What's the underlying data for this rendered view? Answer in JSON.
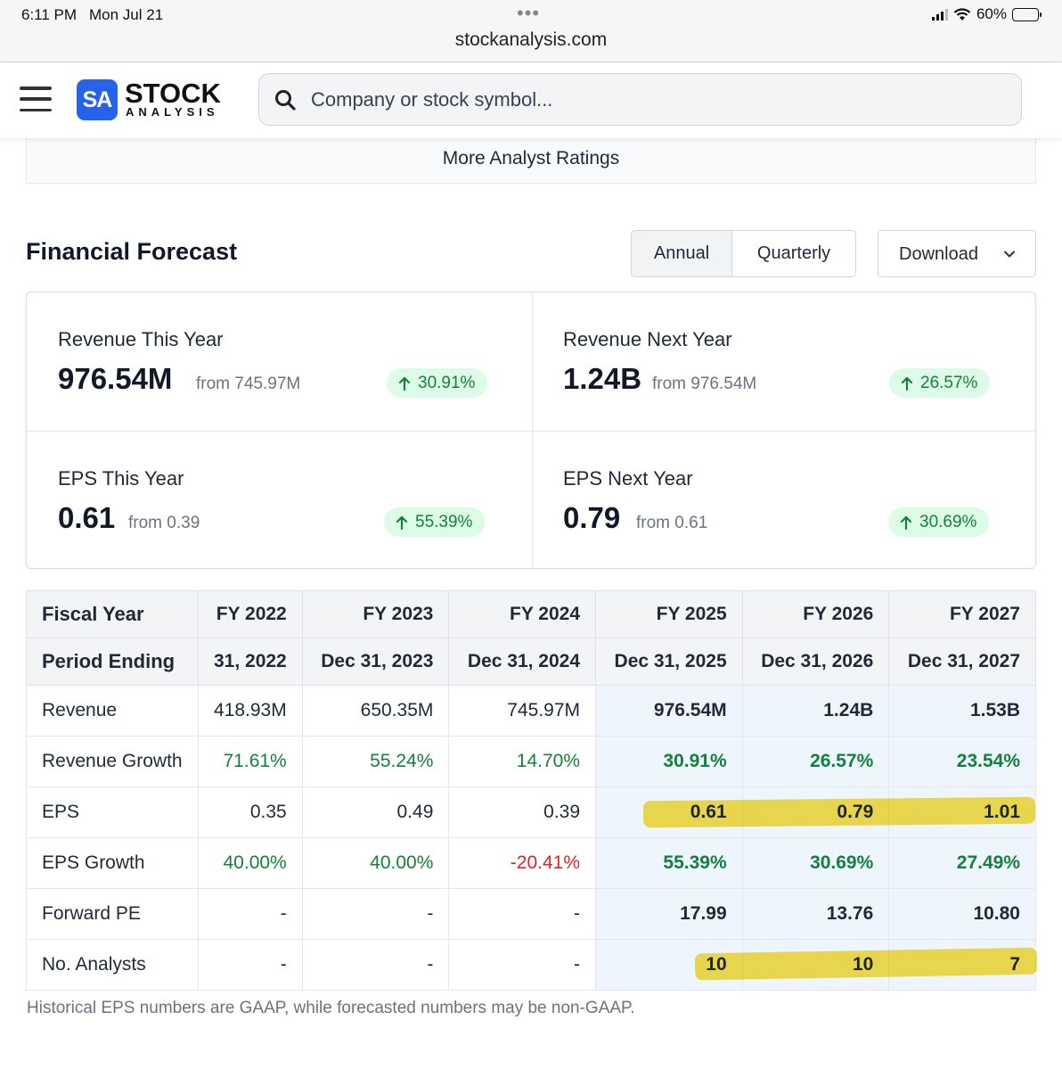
{
  "status_bar": {
    "time": "6:11 PM",
    "date": "Mon Jul 21",
    "url": "stockanalysis.com",
    "battery": "60%"
  },
  "header": {
    "logo_badge": "SA",
    "logo_line1": "STOCK",
    "logo_line2": "ANALYSIS",
    "search_placeholder": "Company or stock symbol..."
  },
  "more_ratings_label": "More Analyst Ratings",
  "forecast": {
    "title": "Financial Forecast",
    "period_tabs": [
      "Annual",
      "Quarterly"
    ],
    "selected_period": "Annual",
    "download_label": "Download"
  },
  "stats": [
    {
      "label": "Revenue This Year",
      "value": "976.54M",
      "from": "from 745.97M",
      "change": "30.91%"
    },
    {
      "label": "Revenue Next Year",
      "value": "1.24B",
      "from": "from 976.54M",
      "change": "26.57%"
    },
    {
      "label": "EPS This Year",
      "value": "0.61",
      "from": "from 0.39",
      "change": "55.39%"
    },
    {
      "label": "EPS Next Year",
      "value": "0.79",
      "from": "from 0.61",
      "change": "30.69%"
    }
  ],
  "table": {
    "fiscal_year_label": "Fiscal Year",
    "period_ending_label": "Period Ending",
    "fiscal_years": [
      "FY 2022",
      "FY 2023",
      "FY 2024",
      "FY 2025",
      "FY 2026",
      "FY 2027"
    ],
    "period_endings": [
      "31, 2022",
      "Dec 31, 2023",
      "Dec 31, 2024",
      "Dec 31, 2025",
      "Dec 31, 2026",
      "Dec 31, 2027"
    ],
    "rows": [
      {
        "label": "Revenue",
        "values": [
          "418.93M",
          "650.35M",
          "745.97M",
          "976.54M",
          "1.24B",
          "1.53B"
        ]
      },
      {
        "label": "Revenue Growth",
        "values": [
          "71.61%",
          "55.24%",
          "14.70%",
          "30.91%",
          "26.57%",
          "23.54%"
        ]
      },
      {
        "label": "EPS",
        "values": [
          "0.35",
          "0.49",
          "0.39",
          "0.61",
          "0.79",
          "1.01"
        ]
      },
      {
        "label": "EPS Growth",
        "values": [
          "40.00%",
          "40.00%",
          "-20.41%",
          "55.39%",
          "30.69%",
          "27.49%"
        ]
      },
      {
        "label": "Forward PE",
        "values": [
          "-",
          "-",
          "-",
          "17.99",
          "13.76",
          "10.80"
        ]
      },
      {
        "label": "No. Analysts",
        "values": [
          "-",
          "-",
          "-",
          "10",
          "10",
          "7"
        ]
      }
    ]
  },
  "footnote": "Historical EPS numbers are GAAP, while forecasted numbers may be non-GAAP.",
  "colors": {
    "brand": "#2563eb",
    "positive": "#15803d",
    "negative": "#dc2626",
    "highlight": "#f6d82e"
  }
}
